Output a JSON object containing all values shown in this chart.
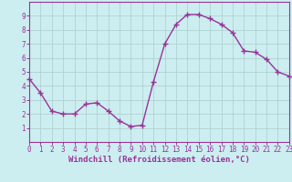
{
  "x": [
    0,
    1,
    2,
    3,
    4,
    5,
    6,
    7,
    8,
    9,
    10,
    11,
    12,
    13,
    14,
    15,
    16,
    17,
    18,
    19,
    20,
    21,
    22,
    23
  ],
  "y": [
    4.5,
    3.5,
    2.2,
    2.0,
    2.0,
    2.7,
    2.8,
    2.2,
    1.5,
    1.1,
    1.2,
    4.3,
    7.0,
    8.4,
    9.1,
    9.1,
    8.8,
    8.4,
    7.8,
    6.5,
    6.4,
    5.9,
    5.0,
    4.7
  ],
  "line_color": "#993399",
  "marker": "+",
  "marker_size": 4,
  "marker_lw": 1.0,
  "bg_color": "#cceef0",
  "grid_color": "#aacccc",
  "xlabel": "Windchill (Refroidissement éolien,°C)",
  "ylabel": "",
  "title": "",
  "xlim": [
    0,
    23
  ],
  "ylim": [
    0,
    10
  ],
  "xticks": [
    0,
    1,
    2,
    3,
    4,
    5,
    6,
    7,
    8,
    9,
    10,
    11,
    12,
    13,
    14,
    15,
    16,
    17,
    18,
    19,
    20,
    21,
    22,
    23
  ],
  "yticks": [
    1,
    2,
    3,
    4,
    5,
    6,
    7,
    8,
    9
  ],
  "tick_fontsize": 5.5,
  "xlabel_fontsize": 6.5,
  "axis_color": "#993399",
  "linewidth": 1.0
}
